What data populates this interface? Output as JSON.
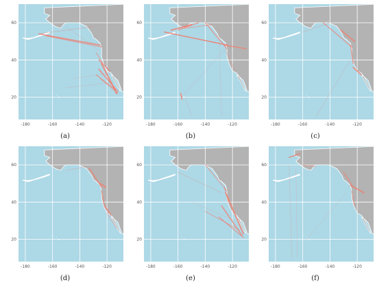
{
  "panels": [
    {
      "caption": "(a)",
      "routes": [
        {
          "from": [
            -170,
            54
          ],
          "to": [
            -125,
            48
          ],
          "w": 1.4,
          "o": 0.9
        },
        {
          "from": [
            -165,
            53
          ],
          "to": [
            -124,
            47
          ],
          "w": 1.1,
          "o": 0.8
        },
        {
          "from": [
            -170,
            54
          ],
          "to": [
            -130,
            58
          ],
          "w": 0.6,
          "o": 0.5
        },
        {
          "from": [
            -150,
            58
          ],
          "to": [
            -126,
            45
          ],
          "w": 0.5,
          "o": 0.4
        },
        {
          "from": [
            -124,
            38
          ],
          "to": [
            -113,
            22
          ],
          "w": 2.0,
          "o": 0.85
        },
        {
          "from": [
            -126,
            35
          ],
          "to": [
            -112,
            23
          ],
          "w": 1.6,
          "o": 0.8
        },
        {
          "from": [
            -128,
            32
          ],
          "to": [
            -114,
            24
          ],
          "w": 1.3,
          "o": 0.7
        },
        {
          "from": [
            -125,
            30
          ],
          "to": [
            -112,
            22
          ],
          "w": 1.0,
          "o": 0.6
        },
        {
          "from": [
            -126,
            40
          ],
          "to": [
            -118,
            34
          ],
          "w": 1.4,
          "o": 0.8
        },
        {
          "from": [
            -128,
            44
          ],
          "to": [
            -123,
            38
          ],
          "w": 1.0,
          "o": 0.7
        },
        {
          "from": [
            -150,
            25
          ],
          "to": [
            -115,
            28
          ],
          "w": 0.6,
          "o": 0.3
        },
        {
          "from": [
            -145,
            30
          ],
          "to": [
            -118,
            33
          ],
          "w": 0.5,
          "o": 0.3
        }
      ]
    },
    {
      "caption": "(b)",
      "routes": [
        {
          "from": [
            -170,
            55
          ],
          "to": [
            -124,
            48
          ],
          "w": 1.5,
          "o": 0.9
        },
        {
          "from": [
            -165,
            56
          ],
          "to": [
            -150,
            59
          ],
          "w": 1.6,
          "o": 0.9
        },
        {
          "from": [
            -160,
            56
          ],
          "to": [
            -145,
            60
          ],
          "w": 1.2,
          "o": 0.8
        },
        {
          "from": [
            -155,
            57
          ],
          "to": [
            -135,
            59
          ],
          "w": 0.8,
          "o": 0.7
        },
        {
          "from": [
            -140,
            60
          ],
          "to": [
            -124,
            46
          ],
          "w": 1.2,
          "o": 0.8
        },
        {
          "from": [
            -126,
            48
          ],
          "to": [
            -110,
            46
          ],
          "w": 1.5,
          "o": 0.8
        },
        {
          "from": [
            -158,
            22
          ],
          "to": [
            -157,
            19
          ],
          "w": 1.6,
          "o": 0.9
        },
        {
          "from": [
            -156,
            21
          ],
          "to": [
            -124,
            47
          ],
          "w": 0.5,
          "o": 0.3
        },
        {
          "from": [
            -155,
            20
          ],
          "to": [
            -150,
            10
          ],
          "w": 0.5,
          "o": 0.3
        },
        {
          "from": [
            -130,
            58
          ],
          "to": [
            -128,
            10
          ],
          "w": 0.5,
          "o": 0.3
        },
        {
          "from": [
            -125,
            45
          ],
          "to": [
            -118,
            34
          ],
          "w": 0.7,
          "o": 0.5
        }
      ]
    },
    {
      "caption": "(c)",
      "routes": [
        {
          "from": [
            -145,
            60
          ],
          "to": [
            -124,
            47
          ],
          "w": 1.2,
          "o": 0.8
        },
        {
          "from": [
            -132,
            56
          ],
          "to": [
            -122,
            50
          ],
          "w": 1.6,
          "o": 0.9
        },
        {
          "from": [
            -125,
            48
          ],
          "to": [
            -123,
            38
          ],
          "w": 1.2,
          "o": 0.8
        },
        {
          "from": [
            -123,
            36
          ],
          "to": [
            -117,
            32
          ],
          "w": 1.6,
          "o": 0.9
        },
        {
          "from": [
            -160,
            55
          ],
          "to": [
            -140,
            60
          ],
          "w": 0.6,
          "o": 0.5
        },
        {
          "from": [
            -150,
            10
          ],
          "to": [
            -125,
            40
          ],
          "w": 0.6,
          "o": 0.3
        }
      ]
    },
    {
      "caption": "(d)",
      "routes": [
        {
          "from": [
            -133,
            58
          ],
          "to": [
            -124,
            48
          ],
          "w": 1.4,
          "o": 0.9
        },
        {
          "from": [
            -125,
            50
          ],
          "to": [
            -121,
            48
          ],
          "w": 1.8,
          "o": 0.9
        },
        {
          "from": [
            -124,
            46
          ],
          "to": [
            -122,
            38
          ],
          "w": 1.2,
          "o": 0.8
        },
        {
          "from": [
            -122,
            38
          ],
          "to": [
            -117,
            33
          ],
          "w": 1.6,
          "o": 0.85
        },
        {
          "from": [
            -120,
            34
          ],
          "to": [
            -113,
            26
          ],
          "w": 0.8,
          "o": 0.6
        },
        {
          "from": [
            -150,
            57
          ],
          "to": [
            -135,
            59
          ],
          "w": 0.6,
          "o": 0.4
        }
      ]
    },
    {
      "caption": "(e)",
      "routes": [
        {
          "from": [
            -160,
            56
          ],
          "to": [
            -128,
            45
          ],
          "w": 0.6,
          "o": 0.4
        },
        {
          "from": [
            -140,
            60
          ],
          "to": [
            -124,
            46
          ],
          "w": 1.0,
          "o": 0.7
        },
        {
          "from": [
            -125,
            45
          ],
          "to": [
            -112,
            23
          ],
          "w": 1.8,
          "o": 0.85
        },
        {
          "from": [
            -128,
            38
          ],
          "to": [
            -113,
            22
          ],
          "w": 1.5,
          "o": 0.8
        },
        {
          "from": [
            -140,
            35
          ],
          "to": [
            -115,
            25
          ],
          "w": 1.0,
          "o": 0.6
        },
        {
          "from": [
            -130,
            32
          ],
          "to": [
            -112,
            21
          ],
          "w": 1.3,
          "o": 0.7
        },
        {
          "from": [
            -150,
            40
          ],
          "to": [
            -118,
            30
          ],
          "w": 0.5,
          "o": 0.3
        },
        {
          "from": [
            -126,
            48
          ],
          "to": [
            -123,
            40
          ],
          "w": 1.0,
          "o": 0.8
        }
      ]
    },
    {
      "caption": "(f)",
      "routes": [
        {
          "from": [
            -170,
            64
          ],
          "to": [
            -162,
            66
          ],
          "w": 1.4,
          "o": 0.9
        },
        {
          "from": [
            -160,
            60
          ],
          "to": [
            -150,
            59
          ],
          "w": 0.8,
          "o": 0.6
        },
        {
          "from": [
            -130,
            56
          ],
          "to": [
            -123,
            48
          ],
          "w": 1.2,
          "o": 0.8
        },
        {
          "from": [
            -125,
            49
          ],
          "to": [
            -115,
            45
          ],
          "w": 1.6,
          "o": 0.9
        },
        {
          "from": [
            -124,
            46
          ],
          "to": [
            -122,
            38
          ],
          "w": 1.0,
          "o": 0.7
        },
        {
          "from": [
            -170,
            60
          ],
          "to": [
            -168,
            10
          ],
          "w": 0.6,
          "o": 0.3
        },
        {
          "from": [
            -165,
            58
          ],
          "to": [
            -164,
            10
          ],
          "w": 0.5,
          "o": 0.3
        },
        {
          "from": [
            -128,
            45
          ],
          "to": [
            -157,
            20
          ],
          "w": 0.5,
          "o": 0.3
        }
      ]
    }
  ],
  "axes": {
    "x_ticks": [
      "-180",
      "-160",
      "-140",
      "-120"
    ],
    "y_ticks": [
      "20",
      "40",
      "60"
    ],
    "x_values": [
      -180,
      -160,
      -140,
      -120
    ],
    "y_values": [
      20,
      40,
      60
    ],
    "xlim": [
      -185,
      -108
    ],
    "ylim": [
      8,
      70
    ]
  },
  "colors": {
    "ocean": "#add8e6",
    "land": "#b3b3b3",
    "grid": "#ffffff",
    "route": "#f08070",
    "coast": "#ffffff",
    "tick_text": "#555555"
  }
}
